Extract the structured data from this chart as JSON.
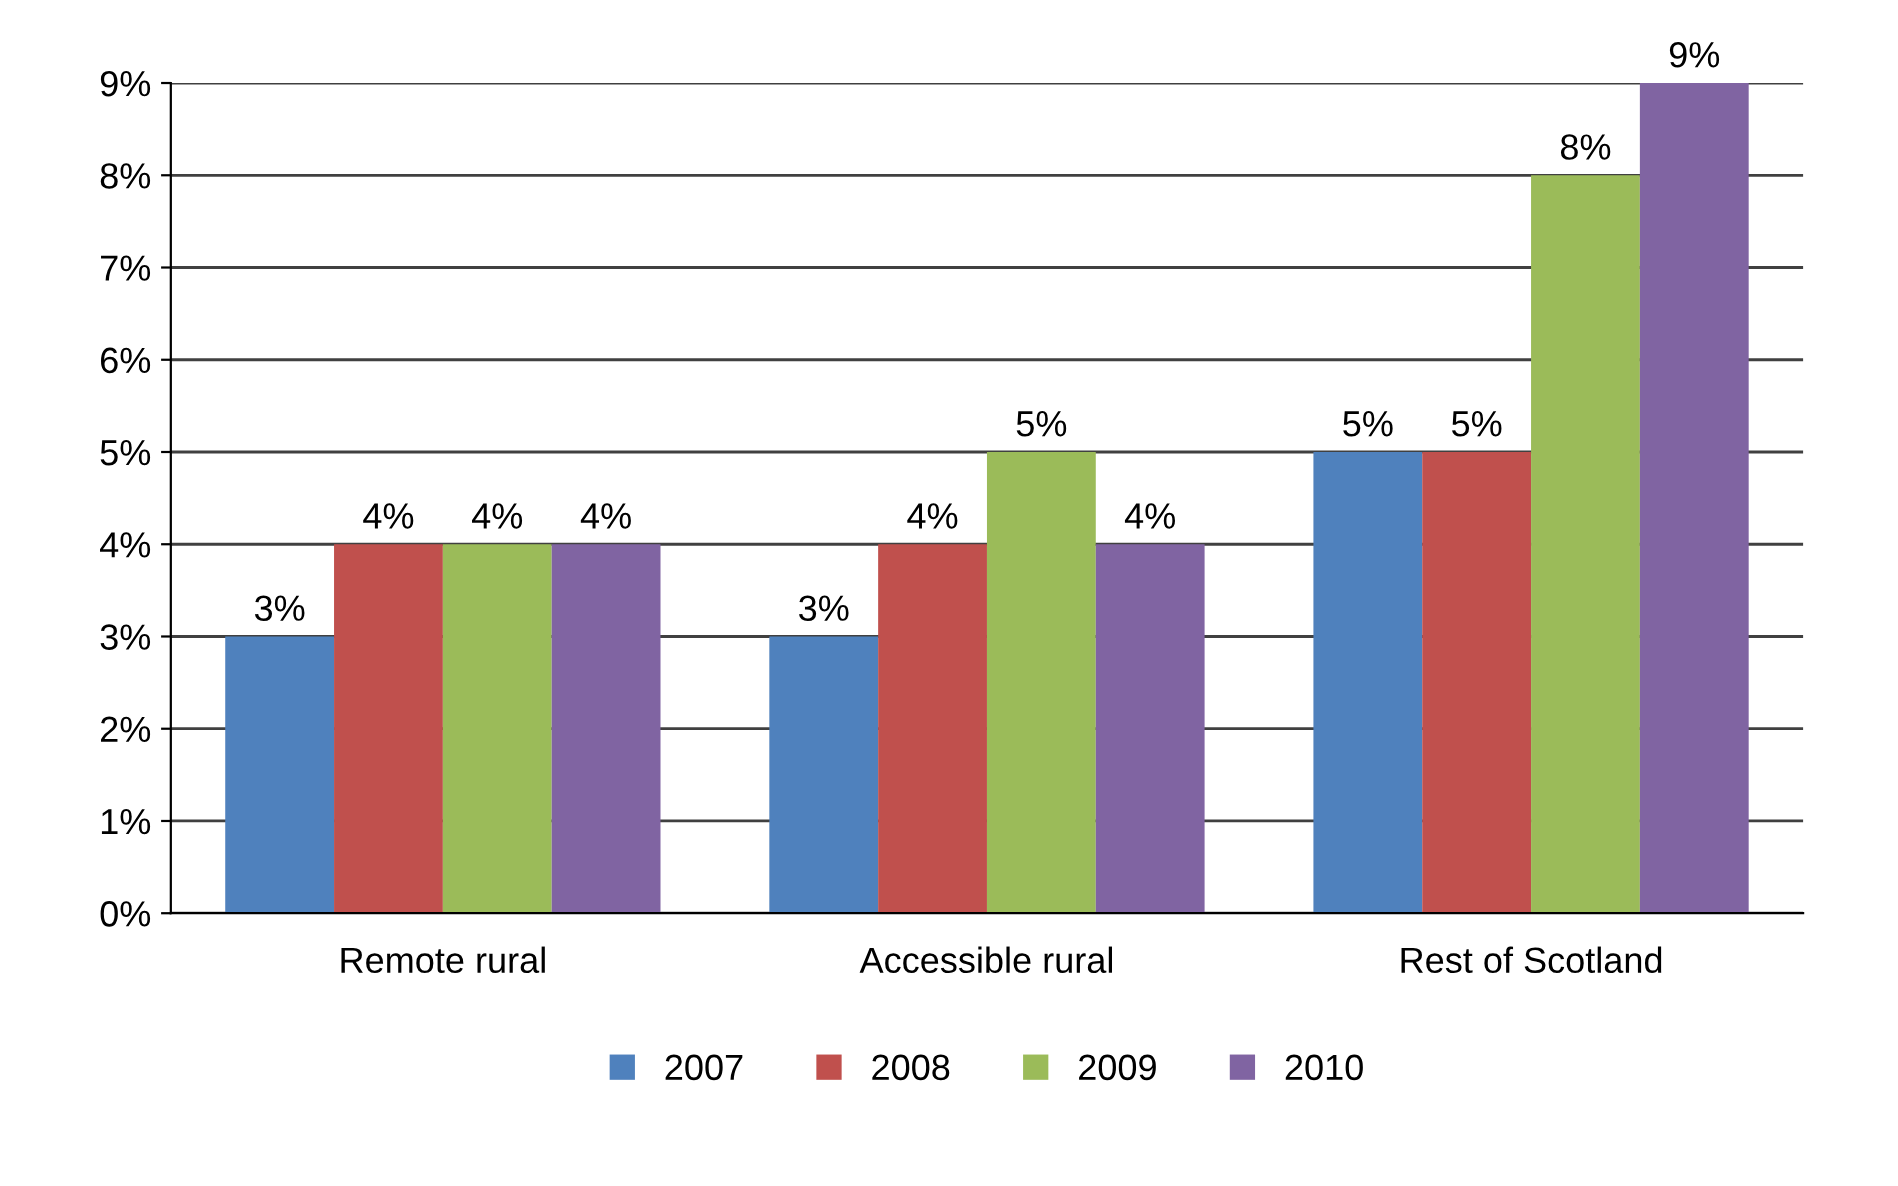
{
  "chart_data": {
    "type": "bar",
    "categories": [
      "Remote rural",
      "Accessible rural",
      "Rest of Scotland"
    ],
    "series": [
      {
        "name": "2007",
        "color": "#4f81bd",
        "values": [
          3,
          3,
          5
        ],
        "value_labels": [
          "3%",
          "3%",
          "5%"
        ]
      },
      {
        "name": "2008",
        "color": "#c0504d",
        "values": [
          4,
          4,
          5
        ],
        "value_labels": [
          "4%",
          "4%",
          "5%"
        ]
      },
      {
        "name": "2009",
        "color": "#9bbb59",
        "values": [
          4,
          5,
          8
        ],
        "value_labels": [
          "4%",
          "5%",
          "8%"
        ]
      },
      {
        "name": "2010",
        "color": "#8064a2",
        "values": [
          4,
          4,
          9
        ],
        "value_labels": [
          "4%",
          "4%",
          "9%"
        ]
      }
    ],
    "ylim": [
      0,
      9
    ],
    "yticks": [
      {
        "value": 0,
        "label": "0%"
      },
      {
        "value": 1,
        "label": "1%"
      },
      {
        "value": 2,
        "label": "2%"
      },
      {
        "value": 3,
        "label": "3%"
      },
      {
        "value": 4,
        "label": "4%"
      },
      {
        "value": 5,
        "label": "5%"
      },
      {
        "value": 6,
        "label": "6%"
      },
      {
        "value": 7,
        "label": "7%"
      },
      {
        "value": 8,
        "label": "8%"
      },
      {
        "value": 9,
        "label": "9%"
      }
    ],
    "grid": "y",
    "legend": "bottom"
  }
}
